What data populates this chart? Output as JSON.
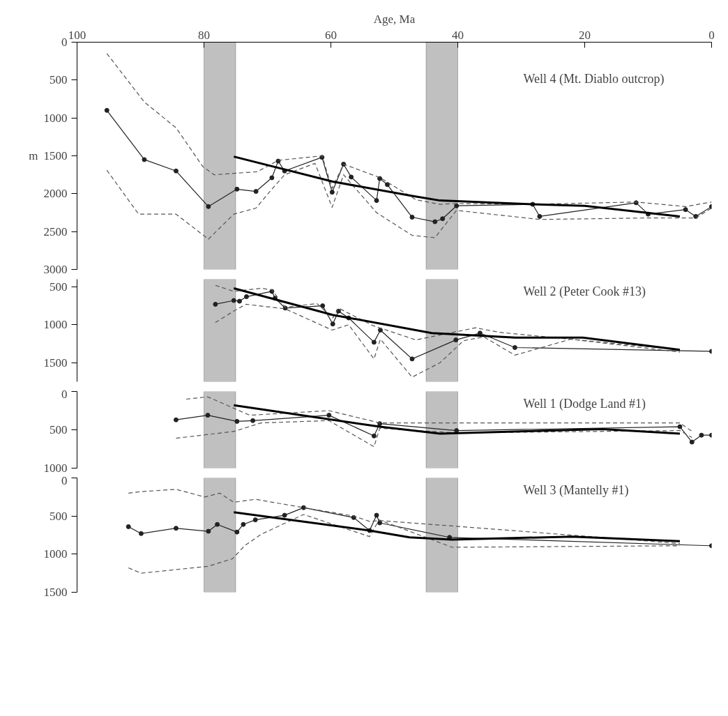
{
  "chart_data": [
    {
      "type": "line",
      "title": "Well 4 (Mt. Diablo outcrop)",
      "xlabel": "Age, Ma",
      "ylabel": "m",
      "xlim": [
        100,
        0
      ],
      "xticks": [
        100,
        80,
        60,
        40,
        20,
        0
      ],
      "ylim": [
        3000,
        0
      ],
      "yticks": [
        0,
        500,
        1000,
        1500,
        2000,
        2500,
        3000
      ],
      "grid": false,
      "bands": [
        {
          "axis": "x",
          "from": 80,
          "to": 75,
          "color": "#c0c0c0"
        },
        {
          "axis": "x",
          "from": 45,
          "to": 40,
          "color": "#c0c0c0"
        }
      ],
      "series": [
        {
          "color": "#222222",
          "marker": "circle",
          "line_style": "solid",
          "x": [
            95.3,
            89.4,
            84.4,
            79.3,
            74.8,
            71.8,
            69.3,
            68.3,
            67.3,
            61.4,
            59.8,
            58.0,
            56.8,
            52.8,
            52.3,
            51.1,
            47.2,
            43.6,
            42.4,
            40.2,
            28.2,
            27.1,
            11.9,
            10.0,
            4.1,
            2.5,
            0
          ],
          "values": [
            900,
            1550,
            1700,
            2170,
            1940,
            1970,
            1790,
            1570,
            1700,
            1520,
            1980,
            1610,
            1780,
            2090,
            1800,
            1880,
            2310,
            2370,
            2330,
            2160,
            2140,
            2300,
            2120,
            2270,
            2210,
            2300,
            2170
          ]
        },
        {
          "color": "#555555",
          "marker": "none",
          "line_style": "dashed",
          "x": [
            95.3,
            89.4,
            84.4,
            80.2,
            78.4,
            71.6,
            68.3,
            61.4,
            59.8,
            58.0,
            52.2,
            46.6,
            42.8,
            40.2,
            28.6,
            11.9,
            4.1,
            0
          ],
          "values": [
            150,
            790,
            1130,
            1640,
            1750,
            1710,
            1560,
            1500,
            1930,
            1610,
            1790,
            2080,
            2140,
            2130,
            2140,
            2110,
            2170,
            2110
          ]
        },
        {
          "color": "#555555",
          "marker": "none",
          "line_style": "dashed",
          "x": [
            95.3,
            90.3,
            84.4,
            79.3,
            75.3,
            71.8,
            69.3,
            67.3,
            62.5,
            59.8,
            58.0,
            52.8,
            47.2,
            43.6,
            40.2,
            27.1,
            10.0,
            2.5,
            0
          ],
          "values": [
            1690,
            2270,
            2270,
            2600,
            2270,
            2190,
            1940,
            1750,
            1600,
            2180,
            1750,
            2250,
            2550,
            2580,
            2220,
            2340,
            2320,
            2320,
            2190
          ]
        },
        {
          "color": "#000000",
          "marker": "none",
          "line_style": "solid",
          "x": [
            75.3,
            59.7,
            47.2,
            42.8,
            28.2,
            20,
            5
          ],
          "values": [
            1510,
            1840,
            2030,
            2090,
            2140,
            2160,
            2300
          ]
        }
      ]
    },
    {
      "type": "line",
      "title": "Well 2 (Peter Cook #13)",
      "xlim": [
        100,
        0
      ],
      "ylim": [
        1750,
        400
      ],
      "yticks": [
        500,
        1000,
        1500
      ],
      "grid": false,
      "tick_labels": "y",
      "bands": [
        {
          "axis": "x",
          "from": 80,
          "to": 75,
          "color": "#c0c0c0"
        },
        {
          "axis": "x",
          "from": 45,
          "to": 40,
          "color": "#c0c0c0"
        }
      ],
      "series": [
        {
          "color": "#222222",
          "marker": "circle",
          "line_style": "solid",
          "x": [
            78.2,
            75.3,
            74.4,
            73.3,
            69.3,
            68.8,
            67.2,
            61.3,
            59.7,
            58.8,
            57.2,
            53.2,
            52.2,
            47.2,
            40.3,
            36.5,
            31.0,
            0
          ],
          "values": [
            730,
            680,
            690,
            630,
            560,
            650,
            780,
            750,
            990,
            820,
            910,
            1230,
            1070,
            1450,
            1200,
            1110,
            1300,
            1350
          ]
        },
        {
          "color": "#555555",
          "marker": "none",
          "line_style": "dashed",
          "x": [
            78.2,
            75.3,
            71.0,
            69.3,
            67.2,
            62.2,
            59.7,
            58.8,
            53.4,
            46.6,
            37.2,
            33.4,
            22.2,
            5.0
          ],
          "values": [
            480,
            560,
            520,
            540,
            770,
            720,
            910,
            780,
            1010,
            1200,
            1040,
            1100,
            1190,
            1330
          ]
        },
        {
          "color": "#555555",
          "marker": "none",
          "line_style": "dashed",
          "x": [
            78.2,
            75.3,
            73.4,
            67.2,
            59.8,
            57.2,
            53.2,
            52.2,
            47.2,
            42.8,
            39.1,
            35.9,
            31.0,
            22.2,
            5.0
          ],
          "values": [
            970,
            820,
            730,
            790,
            1070,
            1000,
            1450,
            1190,
            1690,
            1500,
            1210,
            1160,
            1400,
            1190,
            1360
          ]
        },
        {
          "color": "#000000",
          "marker": "none",
          "line_style": "solid",
          "x": [
            75.3,
            59.7,
            44.1,
            30.9,
            20.3,
            5.0
          ],
          "values": [
            520,
            870,
            1110,
            1170,
            1170,
            1330
          ]
        }
      ]
    },
    {
      "type": "line",
      "title": "Well 1 (Dodge Land #1)",
      "xlim": [
        100,
        0
      ],
      "ylim": [
        1000,
        0
      ],
      "yticks": [
        0,
        500,
        1000
      ],
      "grid": false,
      "tick_labels": "y",
      "bands": [
        {
          "axis": "x",
          "from": 80,
          "to": 75,
          "color": "#c0c0c0"
        },
        {
          "axis": "x",
          "from": 45,
          "to": 40,
          "color": "#c0c0c0"
        }
      ],
      "series": [
        {
          "color": "#222222",
          "marker": "circle",
          "line_style": "solid",
          "x": [
            84.4,
            79.4,
            74.8,
            72.3,
            60.3,
            53.2,
            52.3,
            40.2,
            5.0,
            3.1,
            1.6,
            0
          ],
          "values": [
            370,
            310,
            390,
            380,
            310,
            580,
            420,
            510,
            460,
            660,
            570,
            570
          ]
        },
        {
          "color": "#555555",
          "marker": "none",
          "line_style": "dashed",
          "x": [
            82.8,
            79.4,
            72.8,
            60.3,
            52.3,
            40.2,
            5.0,
            3.1
          ],
          "values": [
            100,
            70,
            310,
            250,
            410,
            410,
            410,
            520
          ]
        },
        {
          "color": "#555555",
          "marker": "none",
          "line_style": "dashed",
          "x": [
            84.4,
            75.2,
            71.0,
            60.3,
            53.2,
            52.3,
            40.2,
            5.0,
            3.1
          ],
          "values": [
            610,
            520,
            410,
            380,
            720,
            480,
            540,
            510,
            600
          ]
        },
        {
          "color": "#000000",
          "marker": "none",
          "line_style": "solid",
          "x": [
            75.3,
            52.3,
            42.8,
            17.2,
            5.0
          ],
          "values": [
            180,
            460,
            550,
            490,
            550
          ]
        }
      ]
    },
    {
      "type": "line",
      "title": "Well 3 (Mantelly #1)",
      "xlim": [
        100,
        0
      ],
      "ylim": [
        1500,
        0
      ],
      "yticks": [
        0,
        500,
        1000,
        1500
      ],
      "grid": false,
      "tick_labels": "y",
      "bands": [
        {
          "axis": "x",
          "from": 80,
          "to": 75,
          "color": "#c0c0c0"
        },
        {
          "axis": "x",
          "from": 45,
          "to": 40,
          "color": "#c0c0c0"
        }
      ],
      "series": [
        {
          "color": "#222222",
          "marker": "circle",
          "line_style": "solid",
          "x": [
            91.9,
            89.9,
            84.4,
            79.3,
            77.9,
            74.8,
            73.8,
            71.9,
            67.3,
            64.3,
            56.4,
            53.9,
            52.8,
            52.3,
            41.3,
            0
          ],
          "values": [
            640,
            730,
            660,
            700,
            610,
            710,
            610,
            550,
            490,
            390,
            520,
            690,
            490,
            590,
            780,
            890
          ]
        },
        {
          "color": "#555555",
          "marker": "none",
          "line_style": "dashed",
          "x": [
            91.9,
            89.9,
            84.4,
            79.9,
            77.5,
            75.3,
            71.9,
            64.3,
            56.4,
            53.9,
            52.3,
            40.9,
            5.0
          ],
          "values": [
            200,
            180,
            150,
            250,
            200,
            320,
            280,
            390,
            500,
            570,
            560,
            630,
            860
          ]
        },
        {
          "color": "#555555",
          "marker": "none",
          "line_style": "dashed",
          "x": [
            91.9,
            89.9,
            79.4,
            75.5,
            73.6,
            71.0,
            64.3,
            53.9,
            52.4,
            40.9,
            5.0
          ],
          "values": [
            1180,
            1250,
            1160,
            1060,
            890,
            740,
            480,
            770,
            550,
            910,
            890
          ]
        },
        {
          "color": "#000000",
          "marker": "none",
          "line_style": "solid",
          "x": [
            75.3,
            53.9,
            47.6,
            40.9,
            22.0,
            5.0
          ],
          "values": [
            450,
            690,
            780,
            810,
            770,
            830
          ]
        }
      ]
    }
  ]
}
